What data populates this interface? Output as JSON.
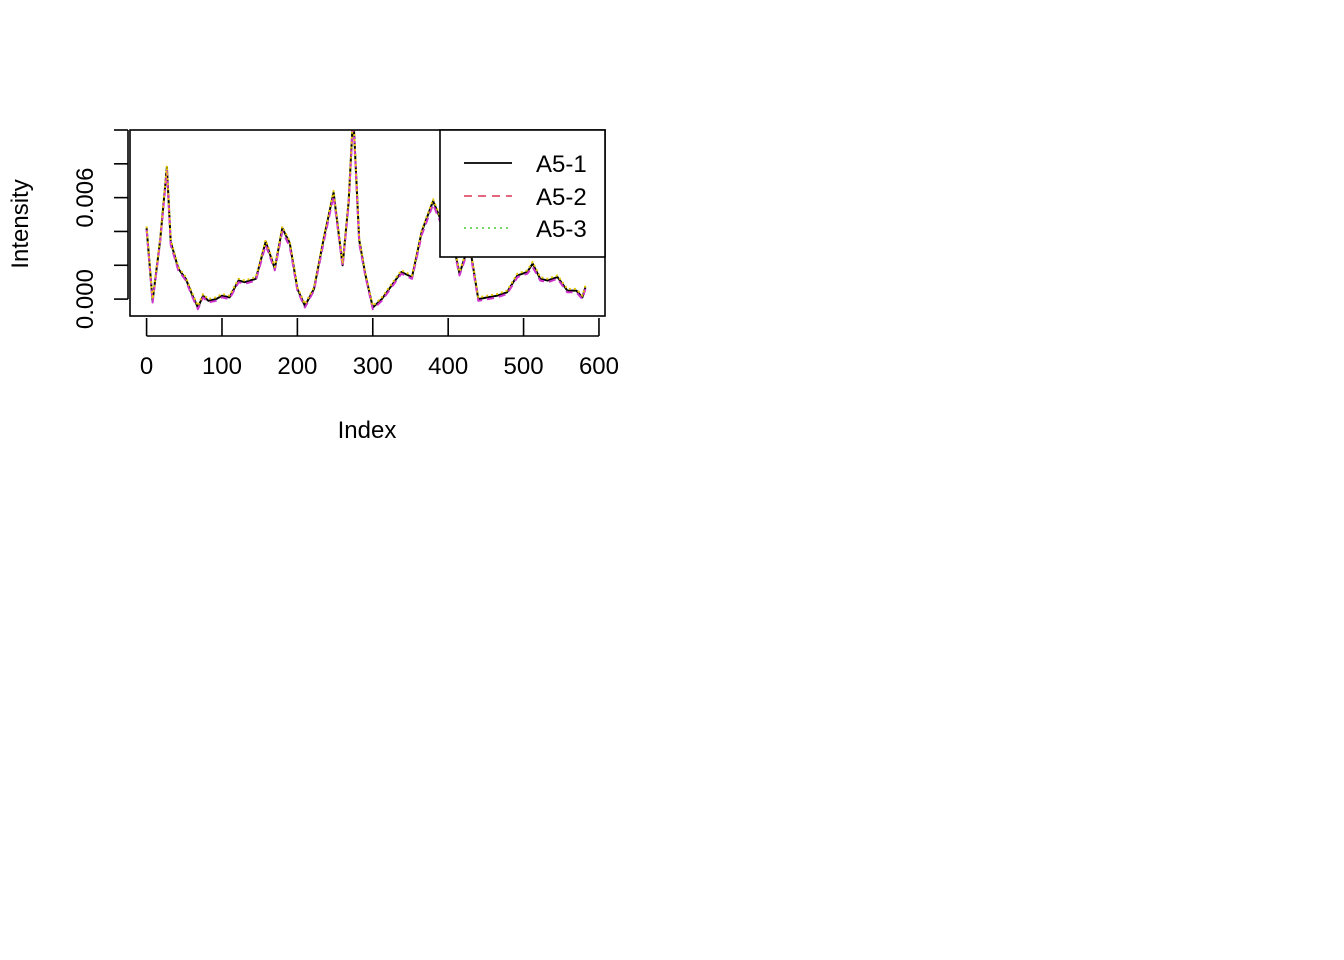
{
  "chart_data": {
    "type": "line",
    "xlabel": "Index",
    "ylabel": "Intensity",
    "xlim": [
      -22,
      608
    ],
    "ylim": [
      -0.001,
      0.01
    ],
    "x_ticks": [
      0,
      100,
      200,
      300,
      400,
      500,
      600
    ],
    "x_tick_labels": [
      "0",
      "100",
      "200",
      "300",
      "400",
      "500",
      "600"
    ],
    "y_ticks": [
      0.0,
      0.002,
      0.004,
      0.006,
      0.008,
      0.01
    ],
    "y_tick_labels": [
      "0.000",
      "0.006"
    ],
    "y_labeled_ticks": [
      0.0,
      0.006
    ],
    "grid": false,
    "legend_position": "top-right",
    "legend": [
      "A5-1",
      "A5-2",
      "A5-3"
    ],
    "colors": {
      "A5-1": "#000000",
      "A5-2": "#DF536B",
      "A5-3": "#61D04F",
      "overlay_magenta": "#CC33CC",
      "overlay_yellow": "#E6C800"
    },
    "x": [
      0,
      8,
      18,
      27,
      32,
      42,
      52,
      60,
      68,
      75,
      82,
      92,
      100,
      110,
      122,
      130,
      145,
      158,
      170,
      180,
      190,
      200,
      210,
      222,
      235,
      248,
      260,
      268,
      274,
      282,
      290,
      300,
      312,
      325,
      338,
      352,
      365,
      380,
      392,
      405,
      415,
      428,
      440,
      452,
      465,
      478,
      492,
      505,
      512,
      522,
      532,
      545,
      558,
      570,
      578,
      582
    ],
    "series": [
      {
        "name": "A5-1",
        "values": [
          0.0042,
          -0.0001,
          0.0035,
          0.0078,
          0.0034,
          0.0018,
          0.0012,
          0.0003,
          -0.0005,
          0.0002,
          -0.0001,
          0.0,
          0.0002,
          0.0001,
          0.0011,
          0.001,
          0.0012,
          0.0034,
          0.0018,
          0.0042,
          0.0033,
          0.0006,
          -0.0004,
          0.0006,
          0.0036,
          0.0063,
          0.002,
          0.0058,
          0.011,
          0.0035,
          0.0015,
          -0.0005,
          0.0,
          0.0008,
          0.0016,
          0.0013,
          0.004,
          0.0058,
          0.0045,
          0.0037,
          0.0015,
          0.0033,
          0.0,
          0.0001,
          0.0002,
          0.0004,
          0.0014,
          0.0016,
          0.0021,
          0.0012,
          0.0011,
          0.0013,
          0.0005,
          0.0005,
          0.0001,
          0.0007
        ]
      },
      {
        "name": "A5-2",
        "values": [
          0.0041,
          -0.0002,
          0.0034,
          0.0076,
          0.0032,
          0.0017,
          0.0011,
          0.0002,
          -0.0006,
          0.0001,
          -0.0002,
          -0.0001,
          0.0001,
          0.0,
          0.001,
          0.0009,
          0.0011,
          0.0032,
          0.0017,
          0.004,
          0.0031,
          0.0005,
          -0.0005,
          0.0005,
          0.0034,
          0.0061,
          0.0019,
          0.0056,
          0.0108,
          0.0033,
          0.0014,
          -0.0006,
          -0.0001,
          0.0007,
          0.0015,
          0.0012,
          0.0038,
          0.0056,
          0.0043,
          0.0035,
          0.0014,
          0.0031,
          -0.0001,
          0.0,
          0.0001,
          0.0003,
          0.0013,
          0.0015,
          0.0019,
          0.0011,
          0.001,
          0.0012,
          0.0004,
          0.0004,
          0.0,
          0.0006
        ]
      },
      {
        "name": "A5-3",
        "values": [
          0.0043,
          0.0,
          0.0036,
          0.0079,
          0.0035,
          0.0019,
          0.0013,
          0.0004,
          -0.0004,
          0.0003,
          0.0,
          0.0001,
          0.0003,
          0.0002,
          0.0012,
          0.0011,
          0.0013,
          0.0035,
          0.0019,
          0.0043,
          0.0034,
          0.0007,
          -0.0003,
          0.0007,
          0.0037,
          0.0064,
          0.0021,
          0.0059,
          0.0111,
          0.0036,
          0.0016,
          -0.0004,
          0.0001,
          0.0009,
          0.0017,
          0.0014,
          0.0041,
          0.0059,
          0.0046,
          0.0038,
          0.0016,
          0.0034,
          0.0001,
          0.0002,
          0.0003,
          0.0005,
          0.0015,
          0.0017,
          0.0022,
          0.0013,
          0.0012,
          0.0014,
          0.0006,
          0.0006,
          0.0002,
          0.0008
        ]
      }
    ]
  }
}
